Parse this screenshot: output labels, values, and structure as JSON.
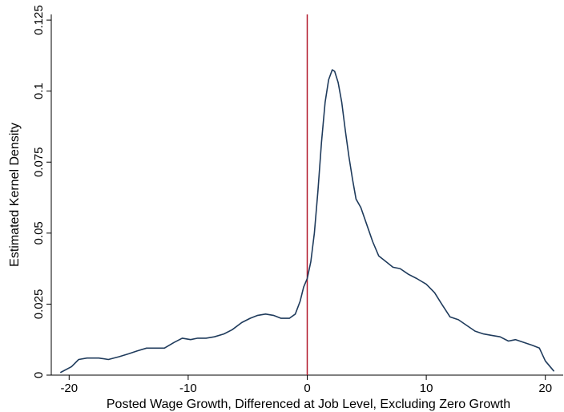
{
  "chart_data": {
    "type": "line",
    "title": "",
    "xlabel": "Posted Wage Growth, Differenced at Job Level, Excluding Zero Growth",
    "ylabel": "Estimated Kernel Density",
    "xlim": [
      -21.5,
      21.5
    ],
    "ylim": [
      0,
      0.127
    ],
    "x_ticks": [
      -20,
      -10,
      0,
      10,
      20
    ],
    "x_tick_labels": [
      "-20",
      "-10",
      "0",
      "10",
      "20"
    ],
    "y_ticks": [
      0,
      0.025,
      0.05,
      0.075,
      0.1,
      0.125
    ],
    "y_tick_labels": [
      "0",
      "0.025",
      "0.05",
      "0.075",
      "0.1",
      "0.125"
    ],
    "grid": false,
    "legend": "none",
    "reference_line": {
      "x": 0,
      "color": "#b2182b"
    },
    "series": [
      {
        "color": "#1f3b5c",
        "x": [
          -20.7,
          -19.8,
          -19.2,
          -18.5,
          -17.5,
          -16.7,
          -15.8,
          -15,
          -14.3,
          -13.5,
          -12.8,
          -12,
          -11.2,
          -10.5,
          -9.8,
          -9.2,
          -8.5,
          -7.8,
          -7,
          -6.3,
          -5.5,
          -4.8,
          -4.2,
          -3.5,
          -2.8,
          -2.2,
          -1.5,
          -1,
          -0.6,
          -0.3,
          0,
          0.3,
          0.6,
          0.9,
          1.2,
          1.5,
          1.8,
          2.1,
          2.3,
          2.6,
          2.9,
          3.2,
          3.5,
          3.8,
          4.1,
          4.5,
          5,
          5.5,
          6,
          6.6,
          7.2,
          7.8,
          8.5,
          9.2,
          10,
          10.7,
          11.3,
          12,
          12.7,
          13.4,
          14.1,
          14.8,
          15.5,
          16.2,
          16.9,
          17.5,
          18.2,
          18.9,
          19.5,
          20,
          20.7
        ],
        "y": [
          0.001,
          0.003,
          0.0055,
          0.006,
          0.006,
          0.0055,
          0.0065,
          0.0075,
          0.0085,
          0.0095,
          0.0095,
          0.0095,
          0.0115,
          0.013,
          0.0125,
          0.013,
          0.013,
          0.0135,
          0.0145,
          0.016,
          0.0185,
          0.02,
          0.021,
          0.0215,
          0.021,
          0.02,
          0.02,
          0.0215,
          0.026,
          0.031,
          0.034,
          0.04,
          0.05,
          0.065,
          0.082,
          0.096,
          0.104,
          0.1075,
          0.107,
          0.103,
          0.096,
          0.086,
          0.077,
          0.069,
          0.062,
          0.059,
          0.053,
          0.047,
          0.042,
          0.04,
          0.038,
          0.0375,
          0.0355,
          0.034,
          0.032,
          0.029,
          0.025,
          0.0205,
          0.0195,
          0.0175,
          0.0155,
          0.0145,
          0.014,
          0.0135,
          0.012,
          0.0125,
          0.0115,
          0.0105,
          0.0095,
          0.005,
          0.0015
        ]
      }
    ]
  }
}
